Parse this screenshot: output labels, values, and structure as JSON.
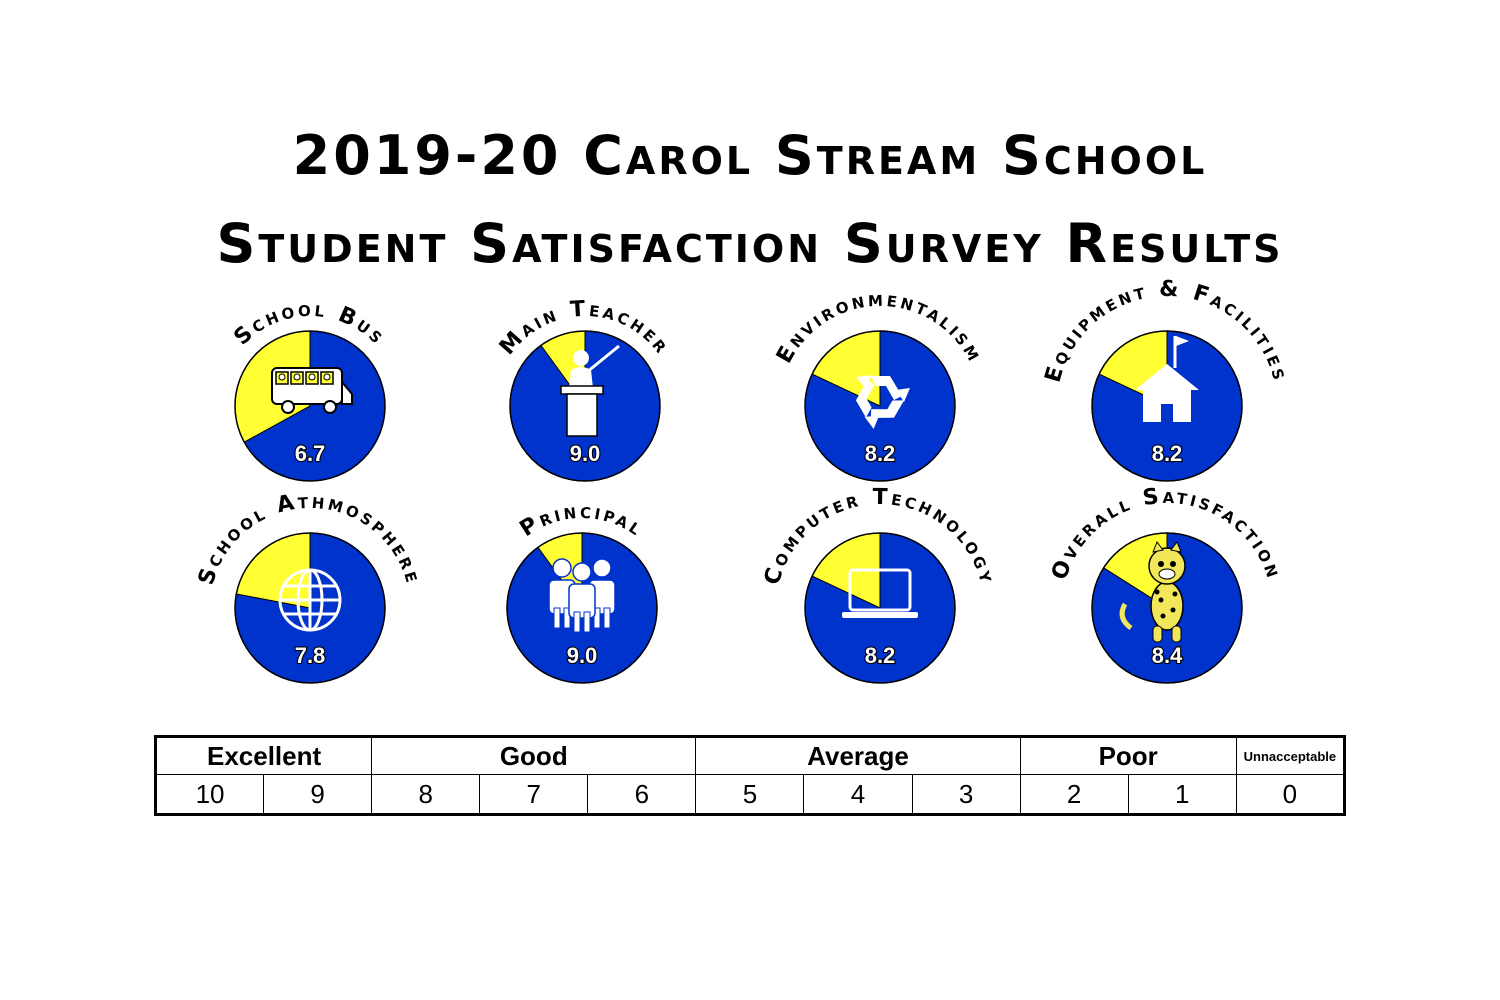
{
  "title": {
    "line1": "2019-20 Carol Stream School",
    "line2": "Student Satisfaction Survey Results"
  },
  "colors": {
    "score": "#0033cc",
    "remainder": "#ffff33",
    "outline": "#000000"
  },
  "chart_data": {
    "type": "pie",
    "max_value": 10,
    "charts": [
      {
        "label": "School Bus",
        "value": 6.7,
        "display": "6.7",
        "icon": "school-bus-icon"
      },
      {
        "label": "Main Teacher",
        "value": 9.0,
        "display": "9.0",
        "icon": "teacher-icon"
      },
      {
        "label": "Environmentalism",
        "value": 8.2,
        "display": "8.2",
        "icon": "recycle-icon"
      },
      {
        "label": "Equipment & Facilities",
        "value": 8.2,
        "display": "8.2",
        "icon": "school-house-icon"
      },
      {
        "label": "School Athmosphere",
        "value": 7.8,
        "display": "7.8",
        "icon": "globe-icon"
      },
      {
        "label": "Principal",
        "value": 9.0,
        "display": "9.0",
        "icon": "people-group-icon"
      },
      {
        "label": "Computer Technology",
        "value": 8.2,
        "display": "8.2",
        "icon": "laptop-icon"
      },
      {
        "label": "Overall Satisfaction",
        "value": 8.4,
        "display": "8.4",
        "icon": "cheetah-mascot-icon"
      }
    ]
  },
  "scale": {
    "categories": [
      {
        "label": "Excellent"
      },
      {
        "label": "Good"
      },
      {
        "label": "Average"
      },
      {
        "label": "Poor"
      },
      {
        "label": "Unnacceptable"
      }
    ],
    "numbers": [
      "10",
      "9",
      "8",
      "7",
      "6",
      "5",
      "4",
      "3",
      "2",
      "1",
      "0"
    ]
  }
}
